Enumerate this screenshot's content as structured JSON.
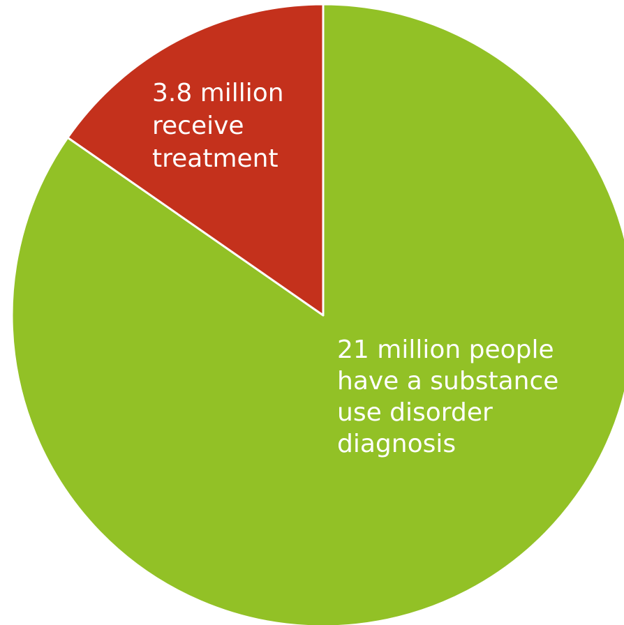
{
  "chart_data": {
    "type": "pie",
    "slices": [
      {
        "label": "21 million people have a substance use disorder diagnosis",
        "value": 21,
        "color": "#92C126",
        "label_lines": [
          "21 million people",
          "have a substance",
          "use disorder",
          "diagnosis"
        ]
      },
      {
        "label": "3.8 million receive treatment",
        "value": 3.8,
        "color": "#C4311C",
        "label_lines": [
          "3.8 million",
          "receive",
          "treatment"
        ]
      }
    ],
    "start": "12 o'clock, counterclockwise for treatment slice",
    "legend": "none"
  }
}
